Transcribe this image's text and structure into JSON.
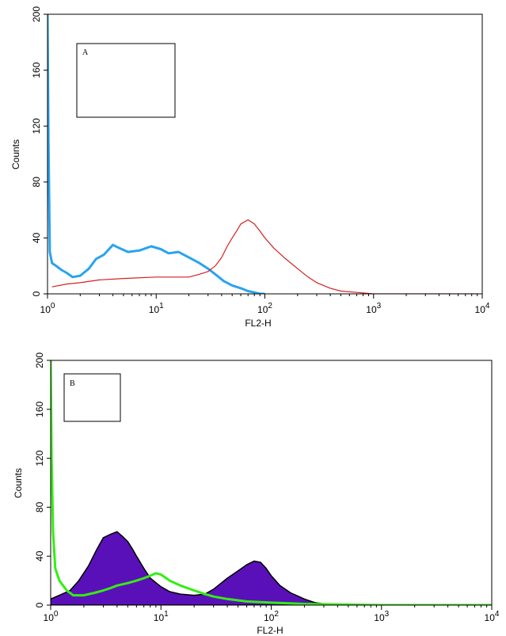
{
  "chart_data": [
    {
      "type": "line",
      "panel_label": "A",
      "xlabel": "FL2-H",
      "ylabel": "Counts",
      "xscale": "log",
      "xlim": [
        1,
        10000
      ],
      "ylim": [
        0,
        200
      ],
      "x_ticks": [
        {
          "base": "10",
          "exp": "0"
        },
        {
          "base": "10",
          "exp": "1"
        },
        {
          "base": "10",
          "exp": "2"
        },
        {
          "base": "10",
          "exp": "3"
        },
        {
          "base": "10",
          "exp": "4"
        }
      ],
      "y_ticks": [
        "0",
        "40",
        "80",
        "120",
        "160",
        "200"
      ],
      "series": [
        {
          "color": "#29a3f0",
          "x": [
            1.0,
            1.02,
            1.05,
            1.1,
            1.2,
            1.35,
            1.5,
            1.7,
            2.0,
            2.4,
            2.8,
            3.3,
            4.0,
            4.5,
            5.5,
            7.0,
            9.0,
            11.0,
            13.0,
            16.0,
            20.0,
            25.0,
            30.0,
            35.0,
            42.0,
            50.0,
            60.0,
            70.0,
            80.0,
            90.0,
            100.0
          ],
          "y": [
            200,
            110,
            30,
            22,
            20,
            17,
            15,
            12,
            13,
            18,
            25,
            28,
            35,
            33,
            30,
            31,
            34,
            32,
            29,
            30,
            26,
            22,
            18,
            14,
            9,
            6,
            4,
            2,
            1,
            0,
            0
          ]
        },
        {
          "color": "#d42020",
          "x": [
            1.1,
            1.5,
            2.0,
            3.0,
            5.0,
            10.0,
            15.0,
            20.0,
            25.0,
            30.0,
            35.0,
            40.0,
            45.0,
            50.0,
            55.0,
            60.0,
            70.0,
            80.0,
            90.0,
            100.0,
            120.0,
            150.0,
            200.0,
            250.0,
            300.0,
            400.0,
            500.0,
            700.0,
            1000.0,
            2000.0,
            5000.0,
            9000.0
          ],
          "y": [
            5,
            7,
            8,
            10,
            11,
            12,
            12,
            12,
            14,
            16,
            20,
            26,
            34,
            40,
            45,
            50,
            53,
            50,
            45,
            40,
            33,
            26,
            18,
            12,
            8,
            4,
            2,
            1,
            0,
            0,
            0,
            0
          ]
        }
      ]
    },
    {
      "type": "area",
      "panel_label": "B",
      "xlabel": "FL2-H",
      "ylabel": "Counts",
      "xscale": "log",
      "xlim": [
        1,
        10000
      ],
      "ylim": [
        0,
        200
      ],
      "x_ticks": [
        {
          "base": "10",
          "exp": "0"
        },
        {
          "base": "10",
          "exp": "1"
        },
        {
          "base": "10",
          "exp": "2"
        },
        {
          "base": "10",
          "exp": "3"
        },
        {
          "base": "10",
          "exp": "4"
        }
      ],
      "y_ticks": [
        "0",
        "40",
        "80",
        "120",
        "160",
        "200"
      ],
      "series": [
        {
          "color": "#5a10b8",
          "x": [
            1.0,
            1.2,
            1.5,
            1.8,
            2.2,
            2.6,
            3.0,
            3.5,
            4.0,
            4.5,
            5.0,
            5.5,
            6.0,
            7.0,
            8.0,
            10.0,
            12.0,
            15.0,
            20.0,
            25.0,
            30.0,
            40.0,
            50.0,
            60.0,
            70.0,
            80.0,
            90.0,
            100.0,
            120.0,
            150.0,
            200.0,
            250.0,
            300.0,
            400.0,
            500.0,
            10000.0
          ],
          "y": [
            5,
            8,
            12,
            20,
            32,
            45,
            55,
            58,
            60,
            56,
            52,
            46,
            40,
            30,
            22,
            15,
            11,
            9,
            8,
            9,
            13,
            22,
            28,
            33,
            36,
            35,
            30,
            24,
            16,
            10,
            5,
            2,
            1,
            0,
            0,
            0
          ]
        },
        {
          "color": "#33ee11",
          "x": [
            1.0,
            1.02,
            1.05,
            1.1,
            1.2,
            1.4,
            1.6,
            2.0,
            2.5,
            3.0,
            3.5,
            4.0,
            5.0,
            6.0,
            7.0,
            8.0,
            9.0,
            10.0,
            12.0,
            15.0,
            20.0,
            25.0,
            30.0,
            40.0,
            60.0,
            100.0,
            200.0,
            1000.0,
            10000.0
          ],
          "y": [
            200,
            120,
            60,
            30,
            20,
            12,
            8,
            8,
            10,
            12,
            14,
            16,
            18,
            20,
            22,
            24,
            26,
            25,
            20,
            16,
            12,
            9,
            7,
            5,
            3,
            2,
            1,
            0,
            0
          ]
        }
      ]
    }
  ]
}
